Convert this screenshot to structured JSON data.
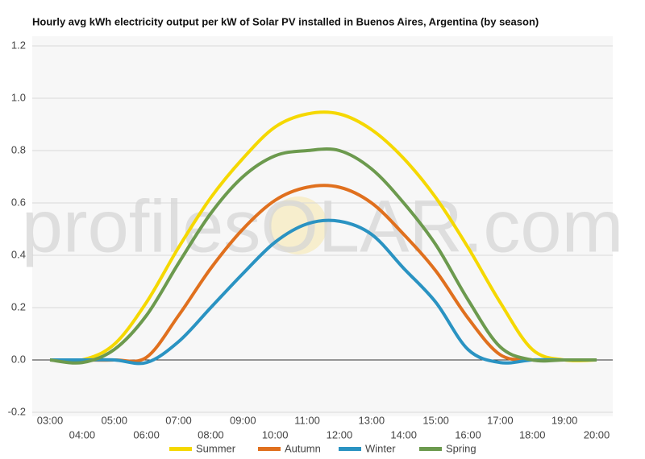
{
  "chart_data": {
    "type": "line",
    "title": "Hourly avg kWh electricity output per kW of Solar PV installed in Buenos Aires, Argentina (by season)",
    "watermark": "profilesOLAR.com",
    "categories": [
      "03:00",
      "04:00",
      "05:00",
      "06:00",
      "07:00",
      "08:00",
      "09:00",
      "10:00",
      "11:00",
      "12:00",
      "13:00",
      "14:00",
      "15:00",
      "16:00",
      "17:00",
      "18:00",
      "19:00",
      "20:00"
    ],
    "series": [
      {
        "name": "Summer",
        "color": "#f5d800",
        "values": [
          0,
          0,
          0.06,
          0.22,
          0.43,
          0.62,
          0.77,
          0.89,
          0.94,
          0.94,
          0.88,
          0.77,
          0.62,
          0.43,
          0.22,
          0.04,
          0,
          0
        ]
      },
      {
        "name": "Autumn",
        "color": "#e0701e",
        "values": [
          0,
          0,
          0,
          0.01,
          0.17,
          0.35,
          0.5,
          0.61,
          0.66,
          0.66,
          0.6,
          0.48,
          0.34,
          0.16,
          0.02,
          0,
          0,
          0
        ]
      },
      {
        "name": "Winter",
        "color": "#2a93c2",
        "values": [
          0,
          0,
          0,
          -0.01,
          0.07,
          0.2,
          0.33,
          0.45,
          0.52,
          0.53,
          0.48,
          0.35,
          0.22,
          0.04,
          -0.01,
          0,
          0,
          0
        ]
      },
      {
        "name": "Spring",
        "color": "#6c9a4e",
        "values": [
          0,
          -0.01,
          0.04,
          0.17,
          0.37,
          0.56,
          0.7,
          0.78,
          0.8,
          0.8,
          0.73,
          0.6,
          0.44,
          0.23,
          0.05,
          0,
          0,
          0
        ]
      }
    ],
    "ylim": [
      -0.2,
      1.2
    ],
    "yticks": [
      -0.2,
      {
        "value": 0,
        "label": "0.0"
      },
      0.2,
      0.4,
      0.6,
      0.8,
      {
        "value": 1,
        "label": "1.0"
      },
      1.2
    ],
    "grid": true,
    "legend": "bottom"
  }
}
